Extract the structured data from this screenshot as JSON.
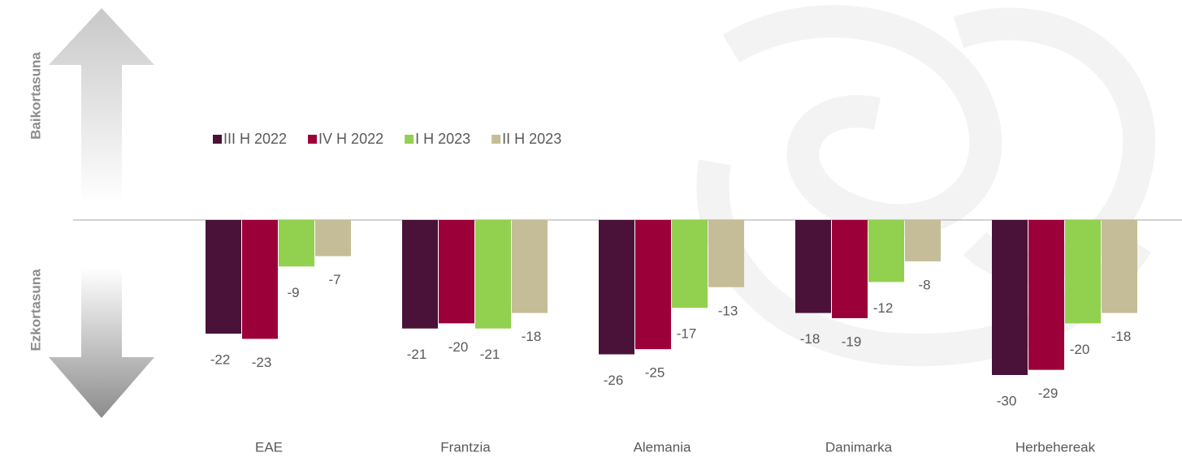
{
  "chart_data": {
    "type": "bar",
    "side_labels": {
      "positive": "Baikortasuna",
      "negative": "Ezkortasuna"
    },
    "categories": [
      "EAE",
      "Frantzia",
      "Alemania",
      "Danimarka",
      "Herbehereak"
    ],
    "series": [
      {
        "name": "III H 2022",
        "color": "#4a1238",
        "values": [
          -22,
          -21,
          -26,
          -18,
          -30
        ]
      },
      {
        "name": "IV H 2022",
        "color": "#9b0039",
        "values": [
          -23,
          -20,
          -25,
          -19,
          -29
        ]
      },
      {
        "name": "I H 2023",
        "color": "#92d050",
        "values": [
          -9,
          -21,
          -17,
          -12,
          -20
        ]
      },
      {
        "name": "II H 2023",
        "color": "#c4bd97",
        "values": [
          -7,
          -18,
          -13,
          -8,
          -18
        ]
      }
    ],
    "ylim": [
      -30,
      0
    ],
    "legend": "top-left"
  }
}
